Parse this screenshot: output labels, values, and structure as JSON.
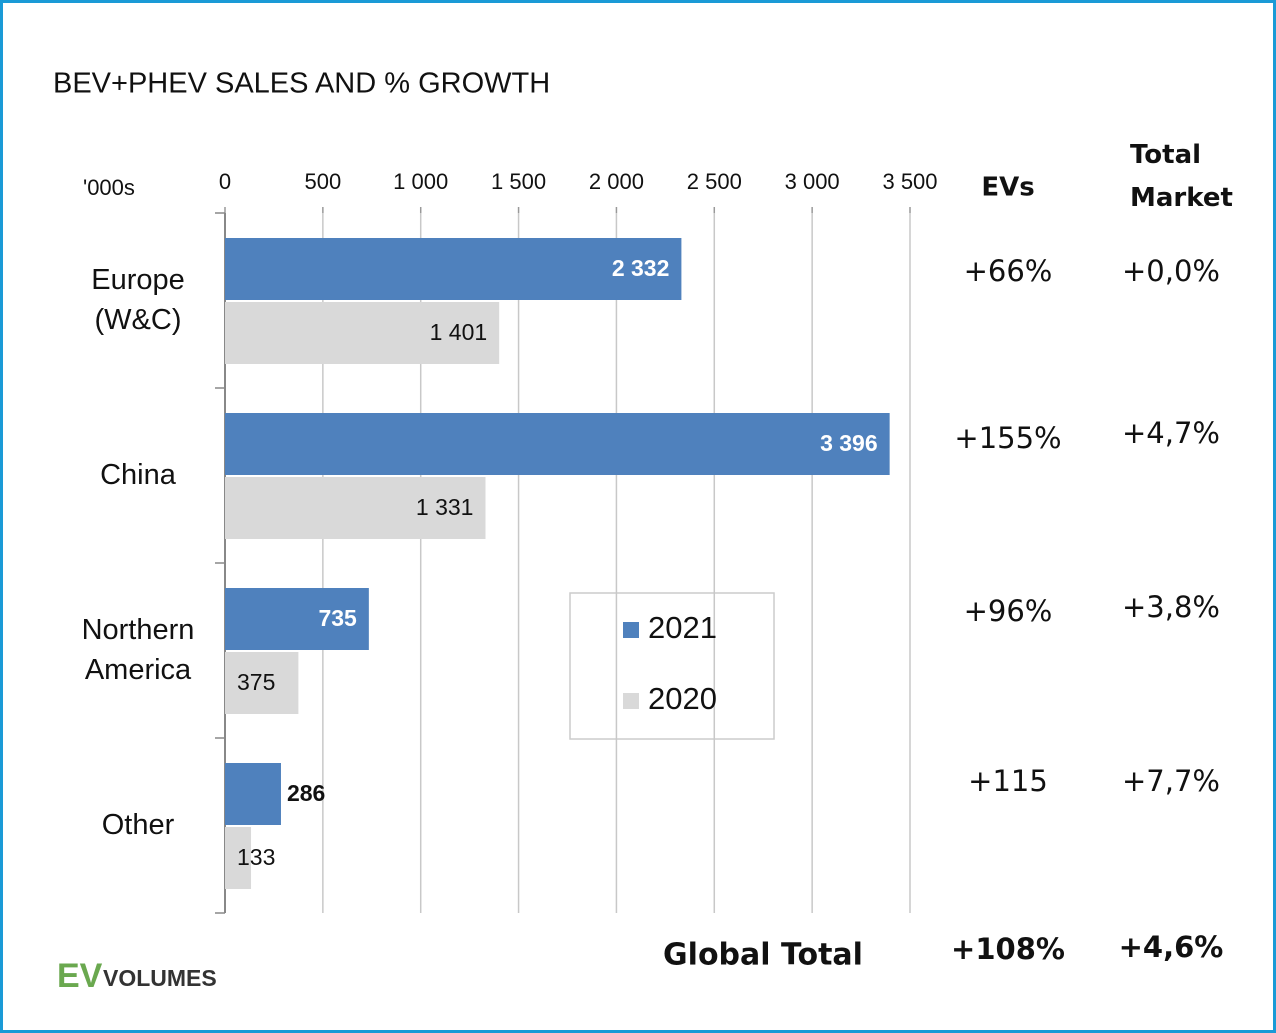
{
  "chart_data": {
    "type": "bar",
    "orientation": "horizontal",
    "title": "BEV+PHEV SALES AND % GROWTH",
    "unit_label": "'000s",
    "categories": [
      "Europe (W&C)",
      "China",
      "Northern America",
      "Other"
    ],
    "series": [
      {
        "name": "2021",
        "color": "#4f81bd",
        "values": [
          2332,
          3396,
          735,
          286
        ],
        "value_labels": [
          "2 332",
          "3 396",
          "735",
          "286"
        ]
      },
      {
        "name": "2020",
        "color": "#d9d9d9",
        "values": [
          1401,
          1331,
          375,
          133
        ],
        "value_labels": [
          "1 401",
          "1 331",
          "375",
          "133"
        ]
      }
    ],
    "xlim": [
      0,
      3500
    ],
    "xticks": [
      0,
      500,
      {
        "value": 1000,
        "label": "1 000"
      },
      {
        "value": 1500,
        "label": "1 500"
      },
      {
        "value": 2000,
        "label": "2 000"
      },
      {
        "value": 2500,
        "label": "2 500"
      },
      {
        "value": 3000,
        "label": "3 000"
      },
      {
        "value": 3500,
        "label": "3 500"
      }
    ],
    "grid": true,
    "growth_table": {
      "headers": [
        "EVs",
        "Total Market"
      ],
      "rows": [
        [
          "+66%",
          "+0,0%"
        ],
        [
          "+155%",
          "+4,7%"
        ],
        [
          "+96%",
          "+3,8%"
        ],
        [
          "+115",
          "+7,7%"
        ]
      ],
      "total": {
        "label": "Global Total",
        "values": [
          "+108%",
          "+4,6%"
        ]
      }
    },
    "source_logo": [
      "EV",
      "VOLUMES"
    ]
  }
}
